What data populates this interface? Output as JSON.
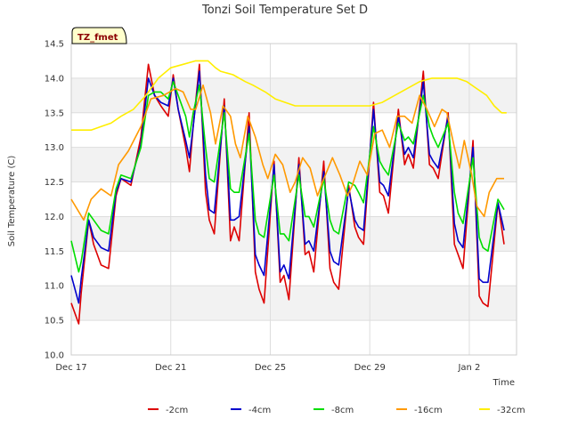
{
  "chart_data": {
    "type": "line",
    "title": "Tonzi Soil Temperature Set D",
    "xlabel": "Time",
    "ylabel": "Soil Temperature (C)",
    "badge": "TZ_fmet",
    "xlim": [
      0,
      17.9
    ],
    "ylim": [
      10.0,
      14.5
    ],
    "x_ticks": [
      {
        "label": "Dec 17",
        "day": 0
      },
      {
        "label": "Dec 21",
        "day": 4
      },
      {
        "label": "Dec 25",
        "day": 8
      },
      {
        "label": "Dec 29",
        "day": 12
      },
      {
        "label": "Jan 2",
        "day": 16
      }
    ],
    "y_ticks": [
      {
        "label": "10.0",
        "value": 10.0
      },
      {
        "label": "10.5",
        "value": 10.5
      },
      {
        "label": "11.0",
        "value": 11.0
      },
      {
        "label": "11.5",
        "value": 11.5
      },
      {
        "label": "12.0",
        "value": 12.0
      },
      {
        "label": "12.5",
        "value": 12.5
      },
      {
        "label": "13.0",
        "value": 13.0
      },
      {
        "label": "13.5",
        "value": 13.5
      },
      {
        "label": "14.0",
        "value": 14.0
      },
      {
        "label": "14.5",
        "value": 14.5
      }
    ],
    "legend_position": "bottom",
    "series": [
      {
        "name": "-2cm",
        "color": "#dd0000",
        "x": [
          0.0,
          0.3,
          0.4,
          0.7,
          0.9,
          1.2,
          1.5,
          1.8,
          2.0,
          2.4,
          2.8,
          3.1,
          3.35,
          3.6,
          3.9,
          4.1,
          4.3,
          4.6,
          4.75,
          4.9,
          5.15,
          5.4,
          5.55,
          5.75,
          6.15,
          6.4,
          6.55,
          6.75,
          7.15,
          7.4,
          7.55,
          7.75,
          8.15,
          8.4,
          8.55,
          8.75,
          9.15,
          9.4,
          9.55,
          9.75,
          10.15,
          10.4,
          10.55,
          10.75,
          11.15,
          11.4,
          11.55,
          11.75,
          12.15,
          12.4,
          12.55,
          12.75,
          13.15,
          13.4,
          13.55,
          13.75,
          14.15,
          14.4,
          14.55,
          14.75,
          15.15,
          15.4,
          15.55,
          15.75,
          16.15,
          16.4,
          16.55,
          16.75,
          17.15,
          17.4
        ],
        "values": [
          10.75,
          10.45,
          10.9,
          11.95,
          11.6,
          11.3,
          11.25,
          12.3,
          12.55,
          12.45,
          13.15,
          14.2,
          13.75,
          13.6,
          13.45,
          14.05,
          13.55,
          13.0,
          12.65,
          13.3,
          14.2,
          12.35,
          11.95,
          11.75,
          13.7,
          11.65,
          11.85,
          11.65,
          13.5,
          11.2,
          10.95,
          10.75,
          12.8,
          11.05,
          11.15,
          10.8,
          12.85,
          11.45,
          11.5,
          11.2,
          12.8,
          11.25,
          11.05,
          10.95,
          12.45,
          11.85,
          11.7,
          11.6,
          13.65,
          12.35,
          12.3,
          12.05,
          13.55,
          12.75,
          12.9,
          12.7,
          14.1,
          12.75,
          12.7,
          12.55,
          13.5,
          11.6,
          11.45,
          11.25,
          13.1,
          10.85,
          10.75,
          10.7,
          12.2,
          11.6
        ]
      },
      {
        "name": "-4cm",
        "color": "#0000cc",
        "x": [
          0.0,
          0.3,
          0.4,
          0.7,
          0.9,
          1.2,
          1.5,
          1.8,
          2.0,
          2.4,
          2.8,
          3.1,
          3.35,
          3.6,
          3.9,
          4.1,
          4.3,
          4.6,
          4.75,
          4.9,
          5.15,
          5.4,
          5.55,
          5.75,
          6.15,
          6.4,
          6.55,
          6.75,
          7.15,
          7.4,
          7.55,
          7.75,
          8.15,
          8.4,
          8.55,
          8.75,
          9.15,
          9.4,
          9.55,
          9.75,
          10.15,
          10.4,
          10.55,
          10.75,
          11.15,
          11.4,
          11.55,
          11.75,
          12.15,
          12.4,
          12.55,
          12.75,
          13.15,
          13.4,
          13.55,
          13.75,
          14.15,
          14.4,
          14.55,
          14.75,
          15.15,
          15.4,
          15.55,
          15.75,
          16.15,
          16.4,
          16.55,
          16.75,
          17.15,
          17.4
        ],
        "values": [
          11.15,
          10.75,
          11.1,
          11.95,
          11.7,
          11.55,
          11.5,
          12.35,
          12.55,
          12.5,
          13.05,
          14.0,
          13.75,
          13.65,
          13.6,
          14.0,
          13.55,
          13.1,
          12.85,
          13.3,
          14.1,
          12.6,
          12.1,
          12.05,
          13.6,
          11.95,
          11.95,
          12.0,
          13.3,
          11.45,
          11.3,
          11.15,
          12.75,
          11.2,
          11.3,
          11.1,
          12.75,
          11.6,
          11.65,
          11.5,
          12.65,
          11.5,
          11.35,
          11.3,
          12.4,
          11.95,
          11.85,
          11.8,
          13.55,
          12.5,
          12.45,
          12.3,
          13.45,
          12.9,
          13.0,
          12.85,
          13.95,
          12.9,
          12.8,
          12.7,
          13.45,
          11.9,
          11.65,
          11.55,
          13.0,
          11.1,
          11.05,
          11.05,
          12.2,
          11.8
        ]
      },
      {
        "name": "-8cm",
        "color": "#00dd00",
        "x": [
          0.0,
          0.3,
          0.4,
          0.7,
          0.9,
          1.2,
          1.5,
          1.8,
          2.0,
          2.4,
          2.8,
          3.1,
          3.35,
          3.6,
          3.9,
          4.1,
          4.3,
          4.6,
          4.75,
          4.9,
          5.15,
          5.4,
          5.55,
          5.75,
          6.15,
          6.4,
          6.55,
          6.75,
          7.15,
          7.4,
          7.55,
          7.75,
          8.15,
          8.4,
          8.55,
          8.75,
          9.15,
          9.4,
          9.55,
          9.75,
          10.15,
          10.4,
          10.55,
          10.75,
          11.15,
          11.4,
          11.55,
          11.75,
          12.15,
          12.4,
          12.55,
          12.75,
          13.15,
          13.4,
          13.55,
          13.75,
          14.15,
          14.4,
          14.55,
          14.75,
          15.15,
          15.4,
          15.55,
          15.75,
          16.15,
          16.4,
          16.55,
          16.75,
          17.15,
          17.4
        ],
        "values": [
          11.65,
          11.2,
          11.35,
          12.05,
          11.95,
          11.8,
          11.75,
          12.4,
          12.6,
          12.55,
          13.0,
          13.75,
          13.8,
          13.8,
          13.7,
          13.95,
          13.75,
          13.45,
          13.15,
          13.5,
          13.9,
          13.0,
          12.55,
          12.5,
          13.5,
          12.4,
          12.35,
          12.35,
          13.2,
          11.95,
          11.75,
          11.7,
          12.6,
          11.75,
          11.75,
          11.65,
          12.6,
          12.0,
          12.0,
          11.85,
          12.55,
          11.95,
          11.8,
          11.75,
          12.5,
          12.45,
          12.35,
          12.2,
          13.3,
          12.8,
          12.7,
          12.6,
          13.35,
          13.1,
          13.15,
          13.05,
          13.75,
          13.3,
          13.15,
          13.0,
          13.35,
          12.35,
          12.05,
          11.9,
          12.85,
          11.7,
          11.55,
          11.5,
          12.25,
          12.1
        ]
      },
      {
        "name": "-16cm",
        "color": "#ff9900",
        "x": [
          0.0,
          0.5,
          0.8,
          1.2,
          1.6,
          1.9,
          2.3,
          2.8,
          3.2,
          3.7,
          4.2,
          4.5,
          4.8,
          5.0,
          5.3,
          5.6,
          5.8,
          6.1,
          6.4,
          6.6,
          6.8,
          7.1,
          7.4,
          7.7,
          7.9,
          8.2,
          8.5,
          8.8,
          9.0,
          9.3,
          9.6,
          9.9,
          10.1,
          10.5,
          10.8,
          11.1,
          11.3,
          11.6,
          11.9,
          12.2,
          12.5,
          12.8,
          13.1,
          13.4,
          13.7,
          14.0,
          14.3,
          14.6,
          14.9,
          15.1,
          15.4,
          15.6,
          15.8,
          16.1,
          16.3,
          16.6,
          16.8,
          17.1,
          17.4
        ],
        "values": [
          12.25,
          11.95,
          12.25,
          12.4,
          12.3,
          12.75,
          12.95,
          13.3,
          13.7,
          13.75,
          13.85,
          13.8,
          13.55,
          13.55,
          13.9,
          13.5,
          13.05,
          13.6,
          13.45,
          13.05,
          12.85,
          13.45,
          13.15,
          12.75,
          12.55,
          12.9,
          12.75,
          12.35,
          12.5,
          12.85,
          12.7,
          12.3,
          12.5,
          12.85,
          12.6,
          12.3,
          12.45,
          12.8,
          12.6,
          13.2,
          13.25,
          13.0,
          13.45,
          13.45,
          13.35,
          13.75,
          13.55,
          13.3,
          13.55,
          13.5,
          13.0,
          12.7,
          13.1,
          12.6,
          12.15,
          12.0,
          12.35,
          12.55,
          12.55
        ]
      },
      {
        "name": "-32cm",
        "color": "#ffee00",
        "x": [
          0.0,
          0.5,
          0.8,
          1.2,
          1.6,
          2.0,
          2.5,
          3.0,
          3.5,
          4.0,
          4.5,
          5.0,
          5.5,
          5.8,
          6.0,
          6.5,
          7.0,
          7.3,
          7.8,
          8.2,
          8.6,
          9.0,
          9.5,
          10.0,
          10.5,
          11.0,
          11.5,
          12.0,
          12.5,
          13.0,
          13.5,
          14.0,
          14.5,
          15.0,
          15.5,
          15.9,
          16.3,
          16.7,
          17.0,
          17.3,
          17.5
        ],
        "values": [
          13.25,
          13.25,
          13.25,
          13.3,
          13.35,
          13.45,
          13.55,
          13.75,
          14.0,
          14.15,
          14.2,
          14.25,
          14.25,
          14.15,
          14.1,
          14.05,
          13.95,
          13.9,
          13.8,
          13.7,
          13.65,
          13.6,
          13.6,
          13.6,
          13.6,
          13.6,
          13.6,
          13.6,
          13.65,
          13.75,
          13.85,
          13.95,
          14.0,
          14.0,
          14.0,
          13.95,
          13.85,
          13.75,
          13.6,
          13.5,
          13.5
        ]
      }
    ]
  }
}
